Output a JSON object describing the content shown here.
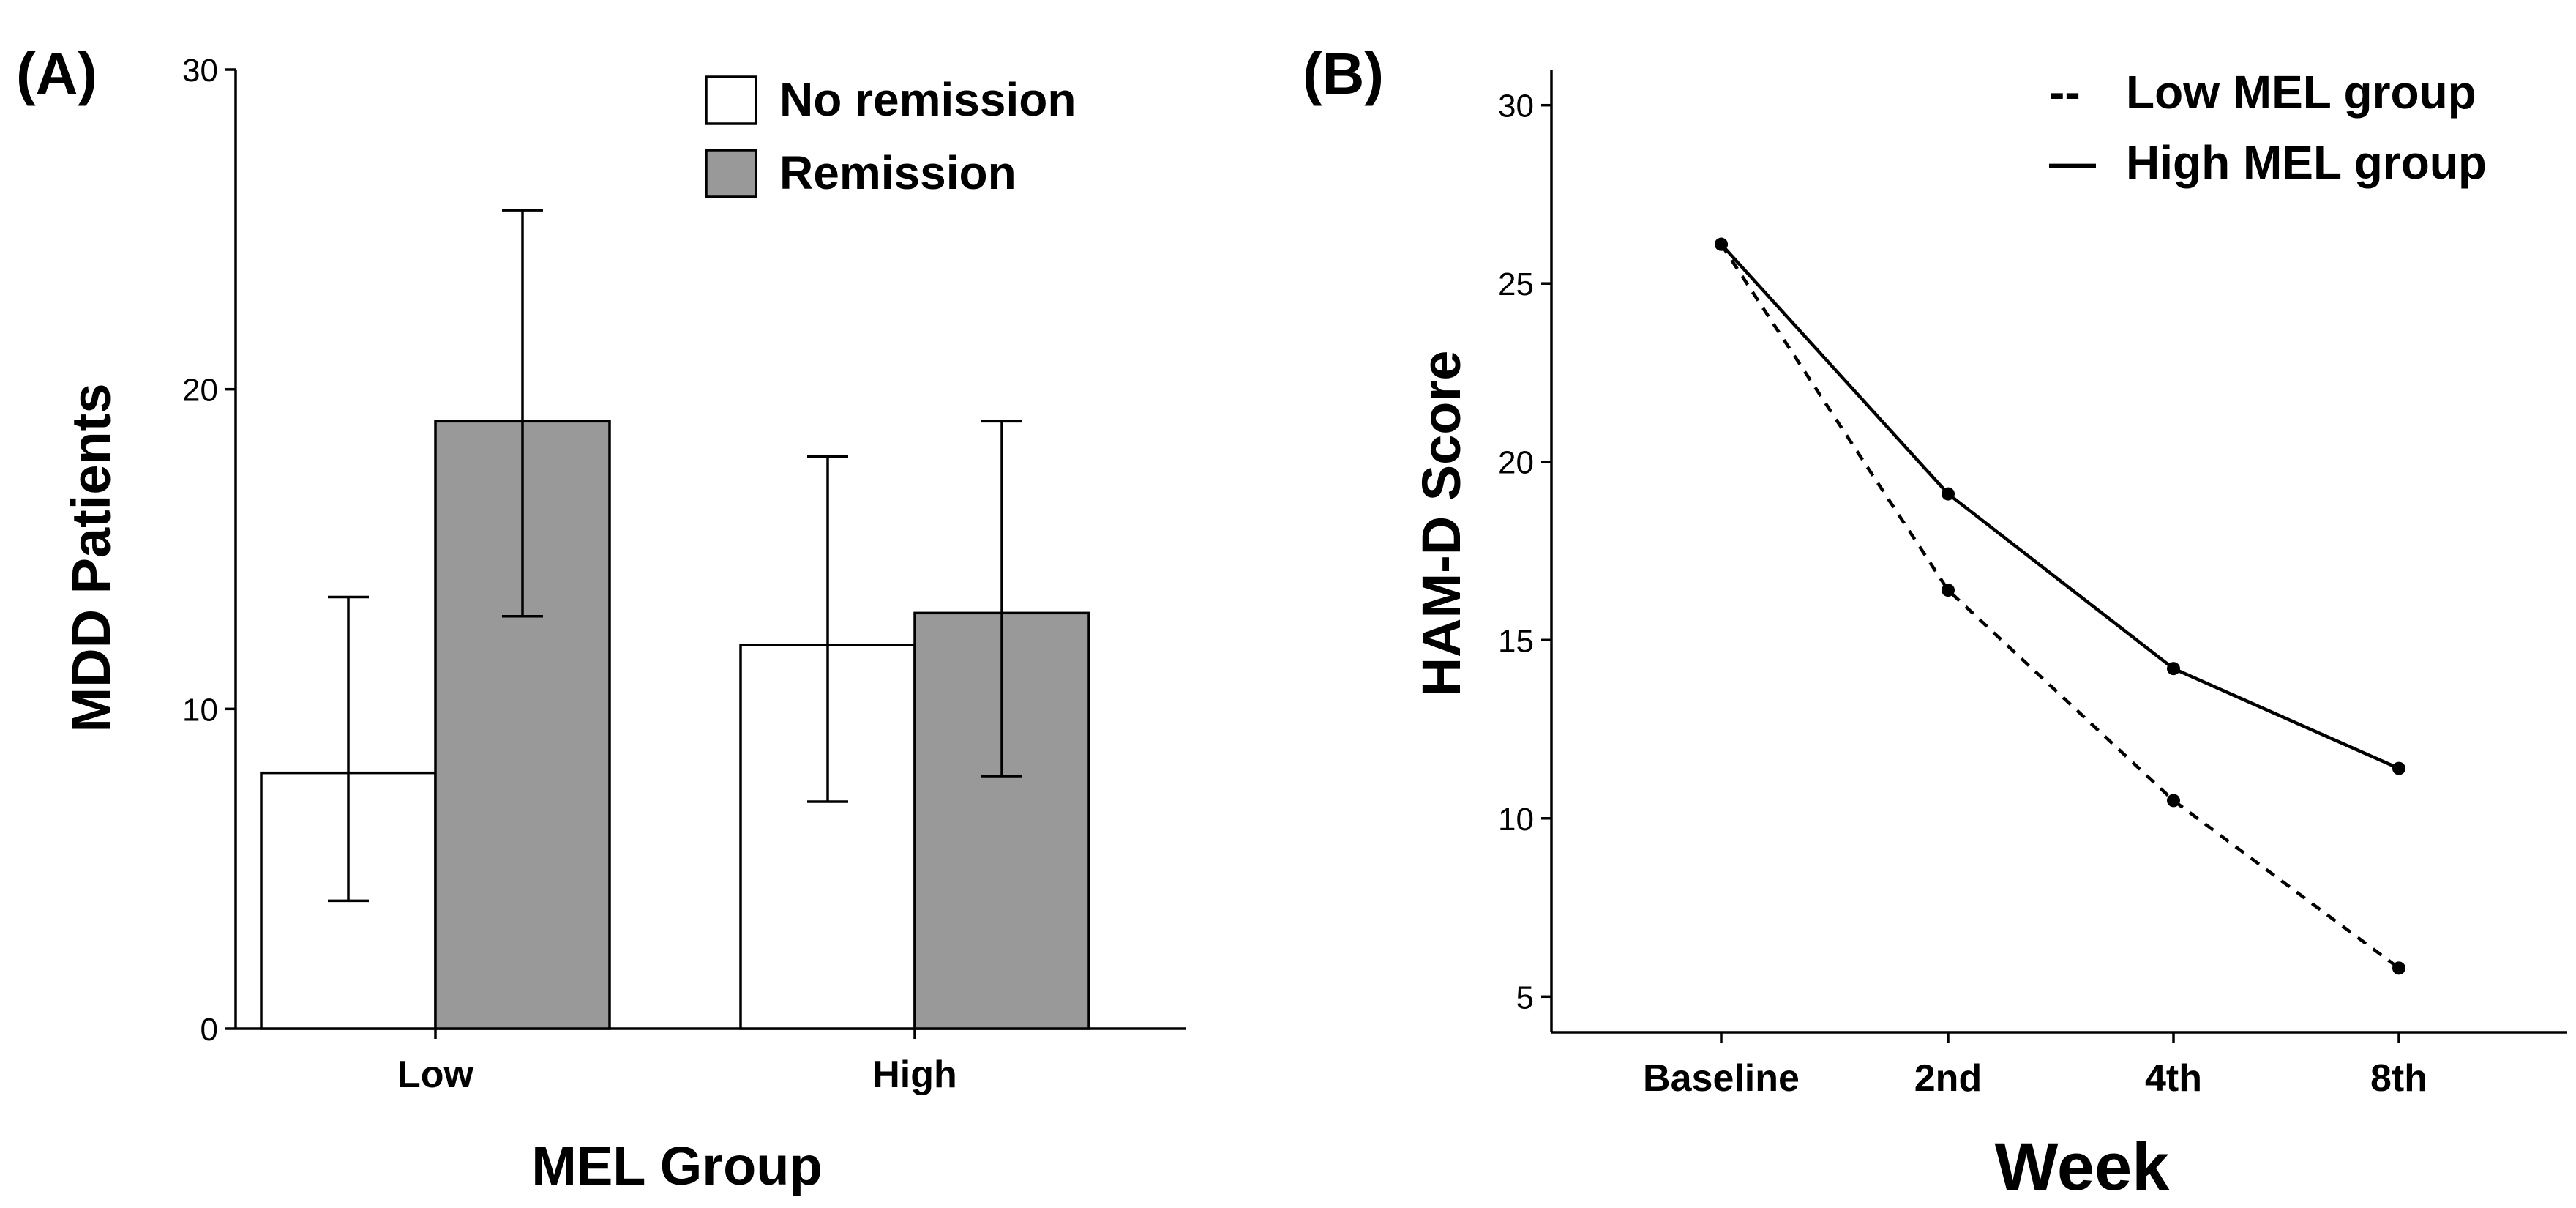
{
  "panels": {
    "a_label": "(A)",
    "b_label": "(B)"
  },
  "chart_data": [
    {
      "type": "bar",
      "categories": [
        "Low",
        "High"
      ],
      "series": [
        {
          "name": "No remission",
          "values": [
            8,
            12
          ],
          "error_low": [
            4,
            7.1
          ],
          "error_high": [
            13.5,
            17.9
          ],
          "color": "#ffffff"
        },
        {
          "name": "Remission",
          "values": [
            19,
            13
          ],
          "error_low": [
            12.9,
            7.9
          ],
          "error_high": [
            25.6,
            19
          ],
          "color": "#999999"
        }
      ],
      "title": "",
      "xlabel": "MEL Group",
      "ylabel": "MDD Patients",
      "ylim": [
        0,
        30
      ],
      "yticks": [
        "0",
        "10",
        "20",
        "30"
      ],
      "legend_position": "top-right",
      "grid": false
    },
    {
      "type": "line",
      "categories": [
        "Baseline",
        "2nd",
        "4th",
        "8th"
      ],
      "series": [
        {
          "name": "Low MEL group",
          "values": [
            26.1,
            16.4,
            10.5,
            5.8
          ],
          "style": "dashed",
          "legend_marker": "--"
        },
        {
          "name": "High MEL group",
          "values": [
            26.1,
            19.1,
            14.2,
            11.4
          ],
          "style": "solid",
          "legend_marker": "—"
        }
      ],
      "title": "",
      "xlabel": "Week",
      "ylabel": "HAM-D Score",
      "ylim": [
        4,
        31
      ],
      "yticks": [
        "5",
        "10",
        "15",
        "20",
        "25",
        "30"
      ],
      "legend_position": "top-right",
      "grid": false
    }
  ]
}
